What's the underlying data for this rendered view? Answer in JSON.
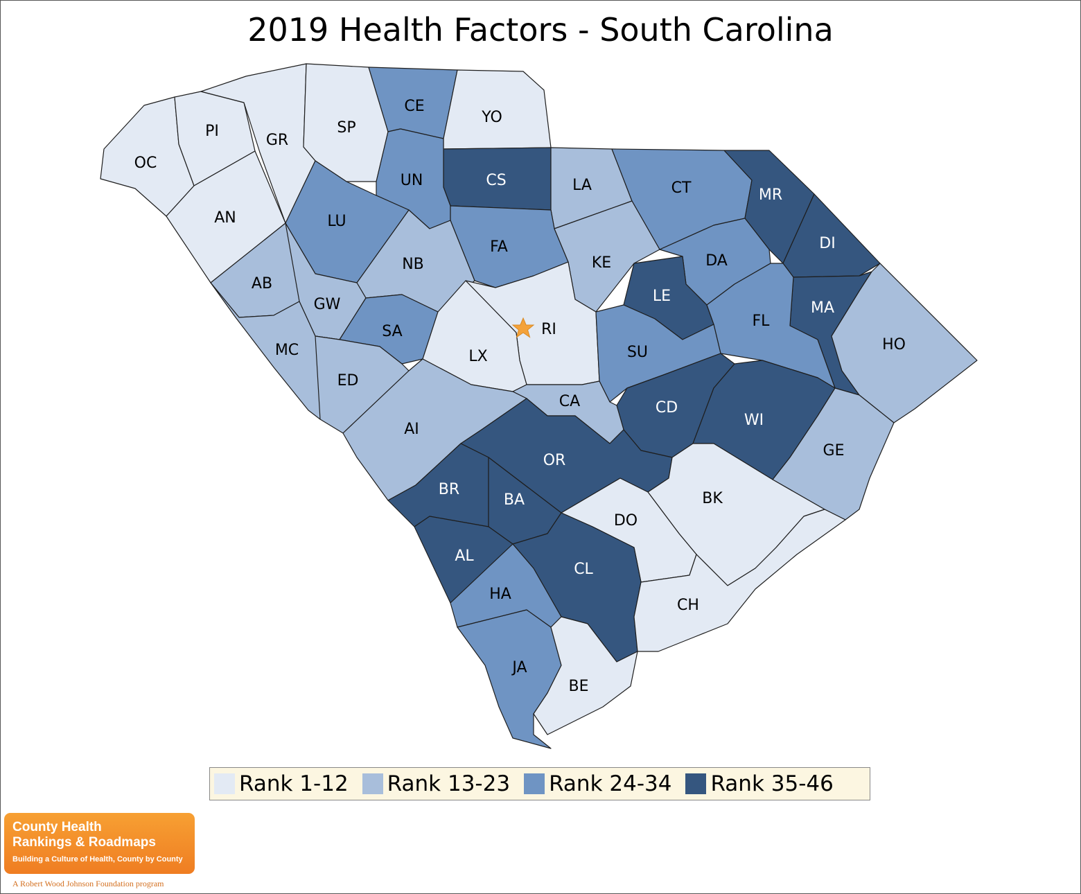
{
  "title": "2019 Health Factors - South Carolina",
  "colors": {
    "rank_1_12": "#e3eaf4",
    "rank_13_23": "#a8bedb",
    "rank_24_34": "#6f94c3",
    "rank_35_46": "#35567f",
    "star": "#f4a23a",
    "legend_bg": "#fcf6e1",
    "logo": "#f08a2a"
  },
  "legend": [
    {
      "label": "Rank 1-12",
      "color": "#e3eaf4"
    },
    {
      "label": "Rank 13-23",
      "color": "#a8bedb"
    },
    {
      "label": "Rank 24-34",
      "color": "#6f94c3"
    },
    {
      "label": "Rank 35-46",
      "color": "#35567f"
    }
  ],
  "counties": [
    {
      "abbr": "OC",
      "band": "Rank 1-12"
    },
    {
      "abbr": "PI",
      "band": "Rank 1-12"
    },
    {
      "abbr": "GR",
      "band": "Rank 1-12"
    },
    {
      "abbr": "SP",
      "band": "Rank 1-12"
    },
    {
      "abbr": "CE",
      "band": "Rank 24-34"
    },
    {
      "abbr": "YO",
      "band": "Rank 1-12"
    },
    {
      "abbr": "CS",
      "band": "Rank 35-46"
    },
    {
      "abbr": "UN",
      "band": "Rank 24-34"
    },
    {
      "abbr": "LA",
      "band": "Rank 13-23"
    },
    {
      "abbr": "CT",
      "band": "Rank 24-34"
    },
    {
      "abbr": "MR",
      "band": "Rank 35-46"
    },
    {
      "abbr": "AN",
      "band": "Rank 1-12"
    },
    {
      "abbr": "LU",
      "band": "Rank 24-34"
    },
    {
      "abbr": "FA",
      "band": "Rank 24-34"
    },
    {
      "abbr": "DI",
      "band": "Rank 35-46"
    },
    {
      "abbr": "NB",
      "band": "Rank 13-23"
    },
    {
      "abbr": "KE",
      "band": "Rank 13-23"
    },
    {
      "abbr": "DA",
      "band": "Rank 24-34"
    },
    {
      "abbr": "AB",
      "band": "Rank 13-23"
    },
    {
      "abbr": "GW",
      "band": "Rank 13-23"
    },
    {
      "abbr": "LE",
      "band": "Rank 35-46"
    },
    {
      "abbr": "MA",
      "band": "Rank 35-46"
    },
    {
      "abbr": "FL",
      "band": "Rank 24-34"
    },
    {
      "abbr": "RI",
      "band": "Rank 1-12"
    },
    {
      "abbr": "SA",
      "band": "Rank 24-34"
    },
    {
      "abbr": "HO",
      "band": "Rank 13-23"
    },
    {
      "abbr": "MC",
      "band": "Rank 13-23"
    },
    {
      "abbr": "LX",
      "band": "Rank 1-12"
    },
    {
      "abbr": "SU",
      "band": "Rank 24-34"
    },
    {
      "abbr": "ED",
      "band": "Rank 13-23"
    },
    {
      "abbr": "CD",
      "band": "Rank 35-46"
    },
    {
      "abbr": "CA",
      "band": "Rank 13-23"
    },
    {
      "abbr": "WI",
      "band": "Rank 35-46"
    },
    {
      "abbr": "AI",
      "band": "Rank 13-23"
    },
    {
      "abbr": "GE",
      "band": "Rank 13-23"
    },
    {
      "abbr": "OR",
      "band": "Rank 35-46"
    },
    {
      "abbr": "BR",
      "band": "Rank 35-46"
    },
    {
      "abbr": "BK",
      "band": "Rank 1-12"
    },
    {
      "abbr": "BA",
      "band": "Rank 35-46"
    },
    {
      "abbr": "DO",
      "band": "Rank 1-12"
    },
    {
      "abbr": "AL",
      "band": "Rank 35-46"
    },
    {
      "abbr": "CL",
      "band": "Rank 35-46"
    },
    {
      "abbr": "HA",
      "band": "Rank 24-34"
    },
    {
      "abbr": "CH",
      "band": "Rank 1-12"
    },
    {
      "abbr": "JA",
      "band": "Rank 24-34"
    },
    {
      "abbr": "BE",
      "band": "Rank 1-12"
    }
  ],
  "capital_marker": "star",
  "logo": {
    "line1": "County Health",
    "line2": "Rankings & Roadmaps",
    "tagline": "Building a Culture of Health, County by County"
  },
  "footer": "A Robert Wood Johnson Foundation program"
}
